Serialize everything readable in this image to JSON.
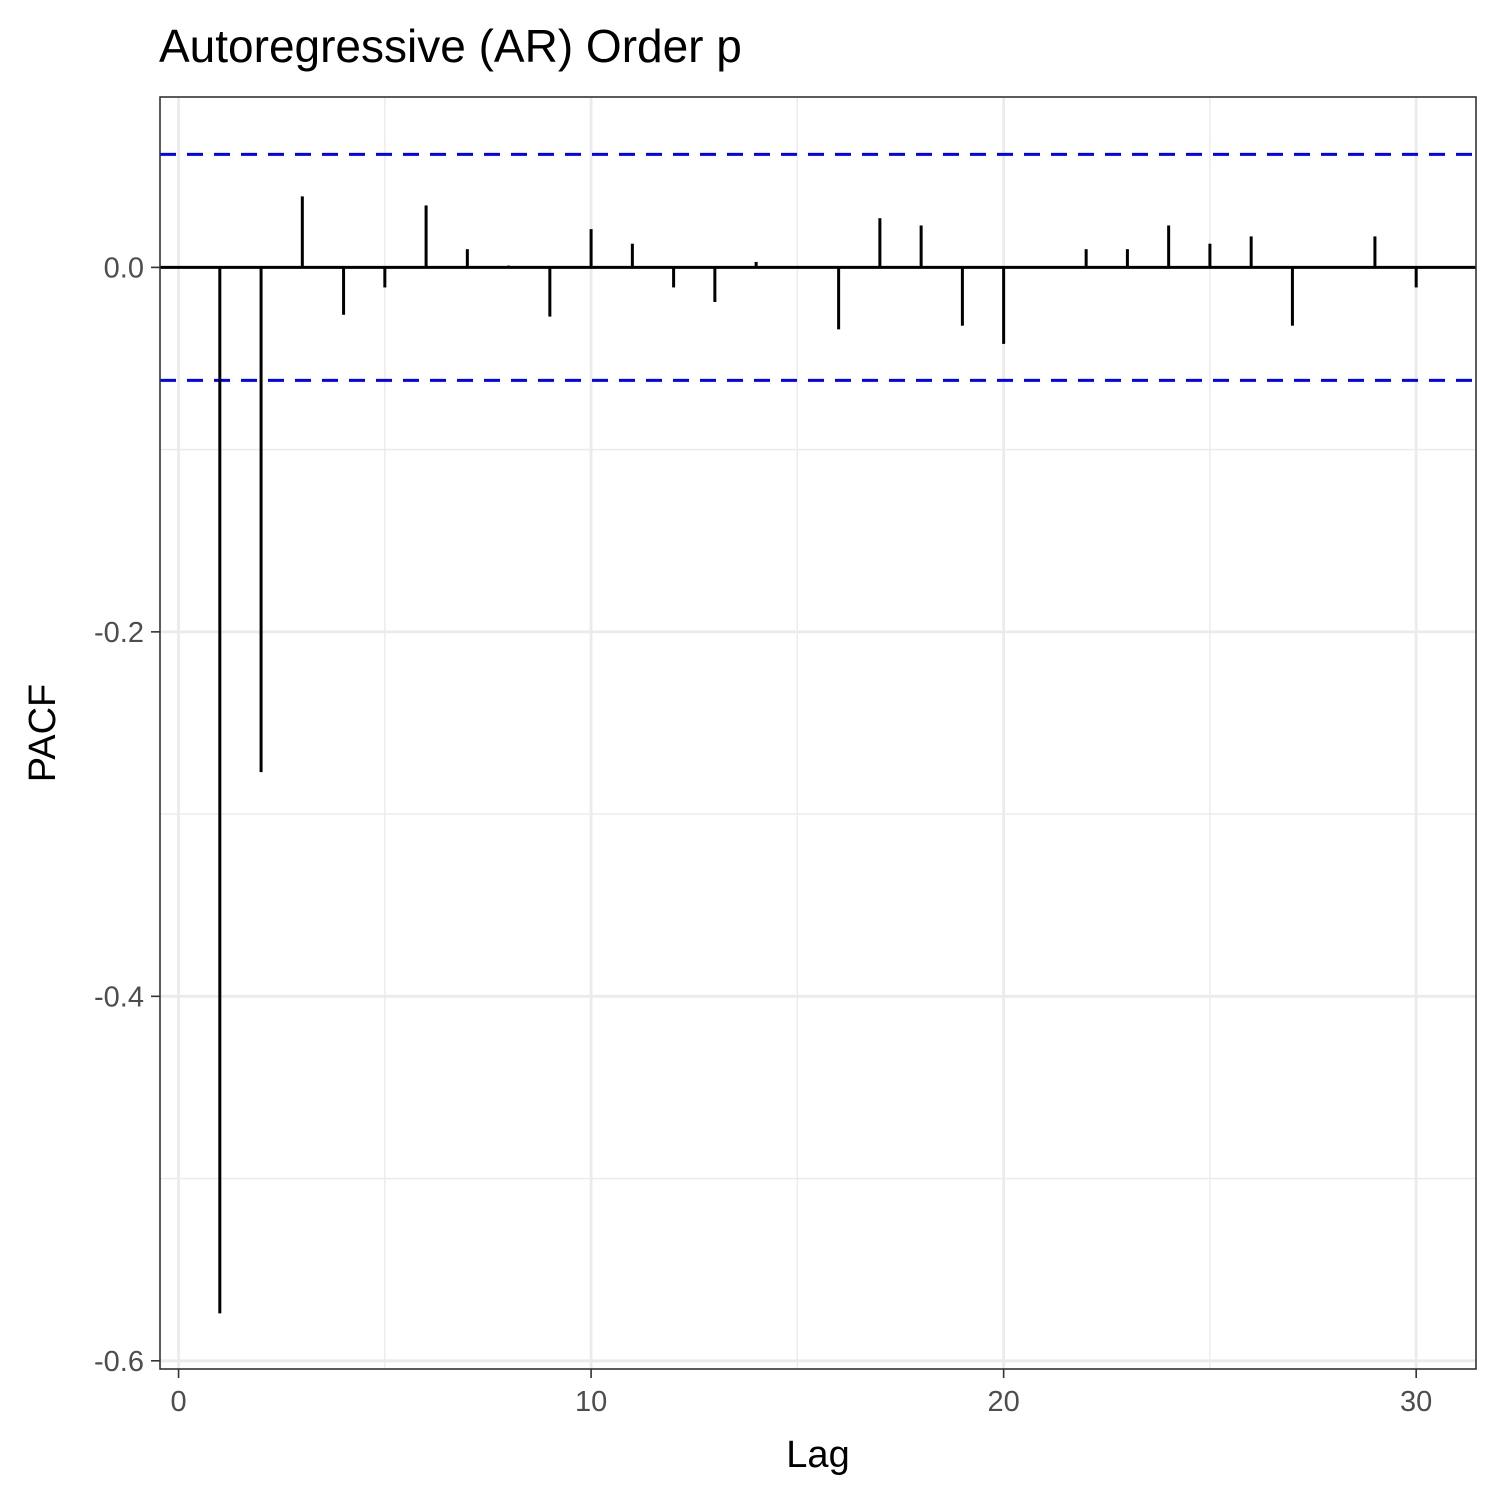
{
  "chart_data": {
    "type": "bar",
    "title": "Autoregressive (AR) Order p",
    "xlabel": "Lag",
    "ylabel": "PACF",
    "xlim": [
      -0.45,
      31.45
    ],
    "ylim": [
      -0.6045,
      0.0935
    ],
    "x_ticks": [
      0,
      10,
      20,
      30
    ],
    "x_tick_labels": [
      "0",
      "10",
      "20",
      "30"
    ],
    "y_ticks": [
      -0.6,
      -0.4,
      -0.2,
      0.0
    ],
    "y_tick_labels": [
      "-0.6",
      "-0.4",
      "-0.2",
      "0.0"
    ],
    "confidence_bounds": [
      0.062,
      -0.062
    ],
    "confidence_color": "#0000ff",
    "bar_color": "#000000",
    "grid": true,
    "x": [
      1,
      2,
      3,
      4,
      5,
      6,
      7,
      8,
      9,
      10,
      11,
      12,
      13,
      14,
      15,
      16,
      17,
      18,
      19,
      20,
      21,
      22,
      23,
      24,
      25,
      26,
      27,
      28,
      29,
      30
    ],
    "values": [
      -0.574,
      -0.277,
      0.039,
      -0.026,
      -0.011,
      0.034,
      0.01,
      0.001,
      -0.027,
      0.021,
      0.013,
      -0.011,
      -0.019,
      0.003,
      0.0,
      -0.034,
      0.027,
      0.023,
      -0.032,
      -0.042,
      0.0,
      0.01,
      0.01,
      0.023,
      0.013,
      0.017,
      -0.032,
      0.0,
      0.017,
      -0.011
    ]
  }
}
